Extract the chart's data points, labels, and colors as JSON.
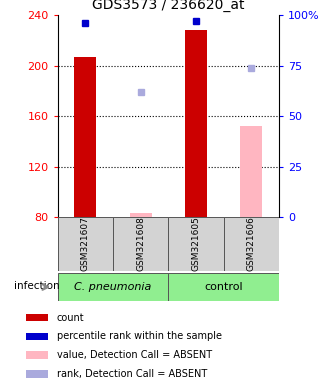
{
  "title": "GDS3573 / 236620_at",
  "samples": [
    "GSM321607",
    "GSM321608",
    "GSM321605",
    "GSM321606"
  ],
  "ylim_left": [
    80,
    240
  ],
  "ylim_right": [
    0,
    100
  ],
  "yticks_left": [
    80,
    120,
    160,
    200,
    240
  ],
  "yticks_right": [
    0,
    25,
    50,
    75,
    100
  ],
  "ytick_labels_right": [
    "0",
    "25",
    "50",
    "75",
    "100%"
  ],
  "grid_lines": [
    120,
    160,
    200
  ],
  "bar_values_present": [
    207,
    null,
    228,
    null
  ],
  "bar_values_absent": [
    null,
    83,
    null,
    152
  ],
  "bar_color_present": "#cc0000",
  "bar_color_absent": "#ffb6c1",
  "rank_present": [
    96,
    null,
    97,
    null
  ],
  "rank_absent": [
    null,
    62,
    null,
    74
  ],
  "rank_color_present": "#0000cc",
  "rank_color_absent": "#aaaadd",
  "bar_width": 0.4,
  "group_boundaries": [
    0,
    2,
    4
  ],
  "group_labels": [
    "C. pneumonia",
    "control"
  ],
  "group_color": "#90ee90",
  "infection_label": "infection",
  "legend_items": [
    "count",
    "percentile rank within the sample",
    "value, Detection Call = ABSENT",
    "rank, Detection Call = ABSENT"
  ],
  "legend_colors": [
    "#cc0000",
    "#0000cc",
    "#ffb6c1",
    "#aaaadd"
  ]
}
